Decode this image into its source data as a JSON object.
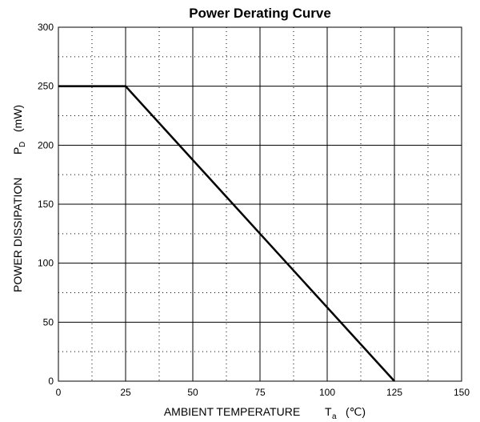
{
  "chart_data": {
    "type": "line",
    "title": "Power Derating Curve",
    "xlabel": {
      "main": "AMBIENT TEMPERATURE",
      "symbol": "T",
      "subscript": "a",
      "unit": "(℃)"
    },
    "ylabel": {
      "main": "POWER DISSIPATION",
      "symbol": "P",
      "subscript": "D",
      "unit": "(mW)"
    },
    "xlim": [
      0,
      150
    ],
    "ylim": [
      0,
      300
    ],
    "x_ticks": [
      0,
      25,
      50,
      75,
      100,
      125,
      150
    ],
    "y_ticks": [
      0,
      50,
      100,
      150,
      200,
      250,
      300
    ],
    "x_minor_step": 12.5,
    "y_minor_step": 25,
    "grid": true,
    "series": [
      {
        "x": [
          0,
          25,
          125
        ],
        "y": [
          250,
          250,
          0
        ]
      }
    ]
  }
}
